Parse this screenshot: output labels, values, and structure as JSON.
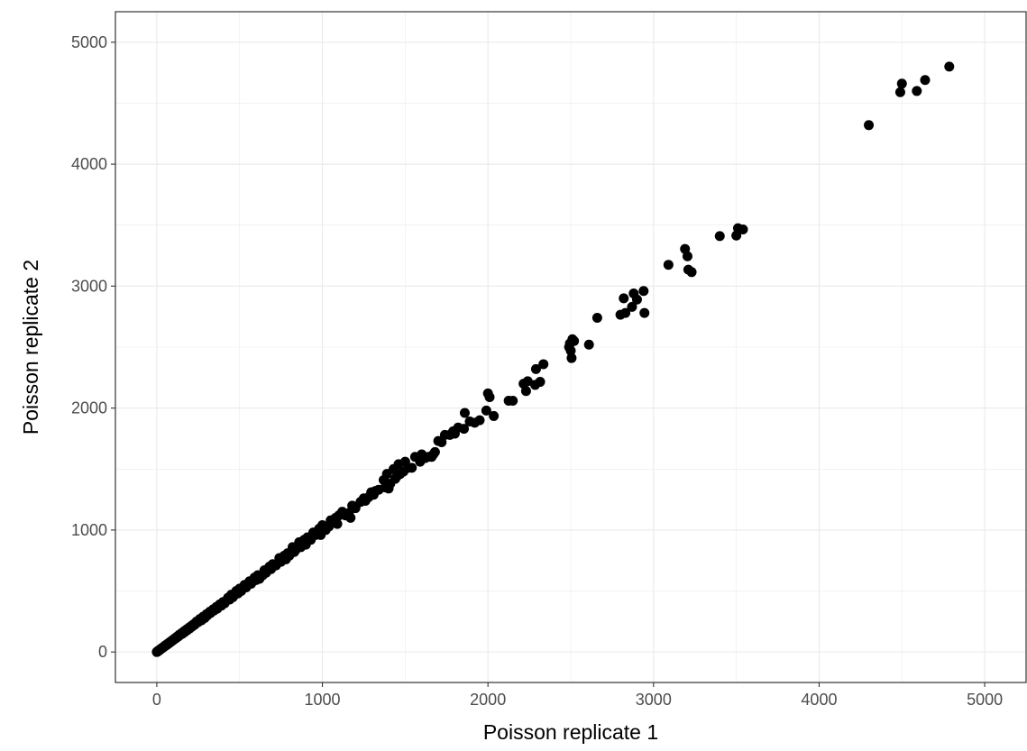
{
  "chart_data": {
    "type": "scatter",
    "title": "",
    "xlabel": "Poisson replicate 1",
    "ylabel": "Poisson replicate 2",
    "xlim": [
      -250,
      5250
    ],
    "ylim": [
      -250,
      5250
    ],
    "x_ticks": [
      0,
      1000,
      2000,
      3000,
      4000,
      5000
    ],
    "y_ticks": [
      0,
      1000,
      2000,
      3000,
      4000,
      5000
    ],
    "x_tick_labels": [
      "0",
      "1000",
      "2000",
      "3000",
      "4000",
      "5000"
    ],
    "y_tick_labels": [
      "0",
      "1000",
      "2000",
      "3000",
      "4000",
      "5000"
    ],
    "grid": true,
    "legend": "none",
    "point_color": "#000000",
    "background": "#ffffff",
    "gridline_color": "#ebebeb",
    "points": [
      [
        4786,
        4800
      ],
      [
        4640,
        4690
      ],
      [
        4590,
        4600
      ],
      [
        4500,
        4660
      ],
      [
        4490,
        4590
      ],
      [
        4300,
        4320
      ],
      [
        3540,
        3465
      ],
      [
        3510,
        3475
      ],
      [
        3500,
        3415
      ],
      [
        3400,
        3410
      ],
      [
        3230,
        3115
      ],
      [
        3210,
        3135
      ],
      [
        3205,
        3245
      ],
      [
        3190,
        3305
      ],
      [
        3090,
        3175
      ],
      [
        2945,
        2780
      ],
      [
        2940,
        2960
      ],
      [
        2900,
        2890
      ],
      [
        2880,
        2940
      ],
      [
        2870,
        2830
      ],
      [
        2830,
        2780
      ],
      [
        2820,
        2900
      ],
      [
        2800,
        2765
      ],
      [
        2660,
        2740
      ],
      [
        2610,
        2520
      ],
      [
        2520,
        2550
      ],
      [
        2510,
        2565
      ],
      [
        2505,
        2410
      ],
      [
        2500,
        2470
      ],
      [
        2495,
        2530
      ],
      [
        2490,
        2500
      ],
      [
        2335,
        2360
      ],
      [
        2315,
        2215
      ],
      [
        2290,
        2320
      ],
      [
        2285,
        2190
      ],
      [
        2240,
        2220
      ],
      [
        2230,
        2140
      ],
      [
        2215,
        2200
      ],
      [
        2150,
        2060
      ],
      [
        2125,
        2060
      ],
      [
        2035,
        1935
      ],
      [
        2010,
        2090
      ],
      [
        2000,
        2120
      ],
      [
        1990,
        1980
      ],
      [
        1950,
        1900
      ],
      [
        1920,
        1880
      ],
      [
        1890,
        1890
      ],
      [
        1860,
        1960
      ],
      [
        1855,
        1830
      ],
      [
        1820,
        1840
      ],
      [
        1800,
        1790
      ],
      [
        1790,
        1810
      ],
      [
        1770,
        1780
      ],
      [
        1740,
        1780
      ],
      [
        1720,
        1720
      ],
      [
        1700,
        1730
      ],
      [
        1680,
        1640
      ],
      [
        1670,
        1620
      ],
      [
        1660,
        1600
      ],
      [
        1640,
        1600
      ],
      [
        1620,
        1590
      ],
      [
        1600,
        1620
      ],
      [
        1590,
        1560
      ],
      [
        1560,
        1600
      ],
      [
        1540,
        1510
      ],
      [
        1520,
        1510
      ],
      [
        1500,
        1560
      ],
      [
        1490,
        1480
      ],
      [
        1470,
        1460
      ],
      [
        1460,
        1540
      ],
      [
        1450,
        1440
      ],
      [
        1440,
        1420
      ],
      [
        1430,
        1500
      ],
      [
        1410,
        1380
      ],
      [
        1400,
        1340
      ],
      [
        1390,
        1460
      ],
      [
        1380,
        1350
      ],
      [
        1370,
        1410
      ],
      [
        1340,
        1330
      ],
      [
        1320,
        1320
      ],
      [
        1310,
        1290
      ],
      [
        1295,
        1310
      ],
      [
        1280,
        1270
      ],
      [
        1260,
        1240
      ],
      [
        1250,
        1260
      ],
      [
        1230,
        1230
      ],
      [
        1200,
        1180
      ],
      [
        1180,
        1200
      ],
      [
        1170,
        1100
      ],
      [
        1160,
        1140
      ],
      [
        1140,
        1120
      ],
      [
        1120,
        1150
      ],
      [
        1100,
        1120
      ],
      [
        1090,
        1050
      ],
      [
        1080,
        1100
      ],
      [
        1060,
        1060
      ],
      [
        1050,
        1080
      ],
      [
        1040,
        1030
      ],
      [
        1020,
        1000
      ],
      [
        1000,
        1040
      ],
      [
        990,
        960
      ],
      [
        980,
        1010
      ],
      [
        960,
        960
      ],
      [
        945,
        980
      ],
      [
        930,
        920
      ],
      [
        910,
        940
      ],
      [
        900,
        880
      ],
      [
        890,
        920
      ],
      [
        870,
        860
      ],
      [
        860,
        900
      ],
      [
        840,
        840
      ],
      [
        830,
        820
      ],
      [
        820,
        860
      ],
      [
        800,
        790
      ],
      [
        790,
        810
      ],
      [
        780,
        760
      ],
      [
        770,
        790
      ],
      [
        750,
        740
      ],
      [
        740,
        770
      ],
      [
        720,
        710
      ],
      [
        700,
        720
      ],
      [
        690,
        680
      ],
      [
        680,
        700
      ],
      [
        660,
        650
      ],
      [
        650,
        670
      ],
      [
        640,
        630
      ],
      [
        620,
        600
      ],
      [
        610,
        630
      ],
      [
        600,
        590
      ],
      [
        590,
        610
      ],
      [
        570,
        560
      ],
      [
        560,
        580
      ],
      [
        540,
        530
      ],
      [
        530,
        550
      ],
      [
        510,
        500
      ],
      [
        500,
        520
      ],
      [
        490,
        480
      ],
      [
        480,
        500
      ],
      [
        460,
        450
      ],
      [
        450,
        470
      ],
      [
        440,
        430
      ],
      [
        430,
        445
      ],
      [
        410,
        400
      ],
      [
        400,
        410
      ],
      [
        390,
        380
      ],
      [
        380,
        390
      ],
      [
        365,
        355
      ],
      [
        360,
        370
      ],
      [
        345,
        340
      ],
      [
        340,
        350
      ],
      [
        325,
        320
      ],
      [
        320,
        330
      ],
      [
        305,
        300
      ],
      [
        300,
        310
      ],
      [
        290,
        280
      ],
      [
        280,
        290
      ],
      [
        270,
        260
      ],
      [
        260,
        270
      ],
      [
        250,
        245
      ],
      [
        240,
        250
      ],
      [
        230,
        225
      ],
      [
        225,
        230
      ],
      [
        215,
        210
      ],
      [
        210,
        215
      ],
      [
        200,
        195
      ],
      [
        195,
        200
      ],
      [
        185,
        180
      ],
      [
        180,
        185
      ],
      [
        170,
        165
      ],
      [
        165,
        170
      ],
      [
        155,
        150
      ],
      [
        150,
        155
      ],
      [
        140,
        138
      ],
      [
        135,
        140
      ],
      [
        128,
        125
      ],
      [
        122,
        125
      ],
      [
        115,
        112
      ],
      [
        110,
        113
      ],
      [
        102,
        100
      ],
      [
        98,
        100
      ],
      [
        92,
        90
      ],
      [
        88,
        90
      ],
      [
        82,
        80
      ],
      [
        78,
        80
      ],
      [
        72,
        70
      ],
      [
        68,
        70
      ],
      [
        62,
        60
      ],
      [
        58,
        60
      ],
      [
        52,
        50
      ],
      [
        48,
        50
      ],
      [
        43,
        42
      ],
      [
        40,
        41
      ],
      [
        35,
        34
      ],
      [
        32,
        33
      ],
      [
        28,
        27
      ],
      [
        25,
        26
      ],
      [
        21,
        20
      ],
      [
        18,
        19
      ],
      [
        15,
        14
      ],
      [
        12,
        13
      ],
      [
        10,
        9
      ],
      [
        8,
        8
      ],
      [
        6,
        6
      ],
      [
        4,
        4
      ],
      [
        3,
        3
      ],
      [
        2,
        2
      ],
      [
        1,
        1
      ],
      [
        0,
        0
      ]
    ]
  }
}
